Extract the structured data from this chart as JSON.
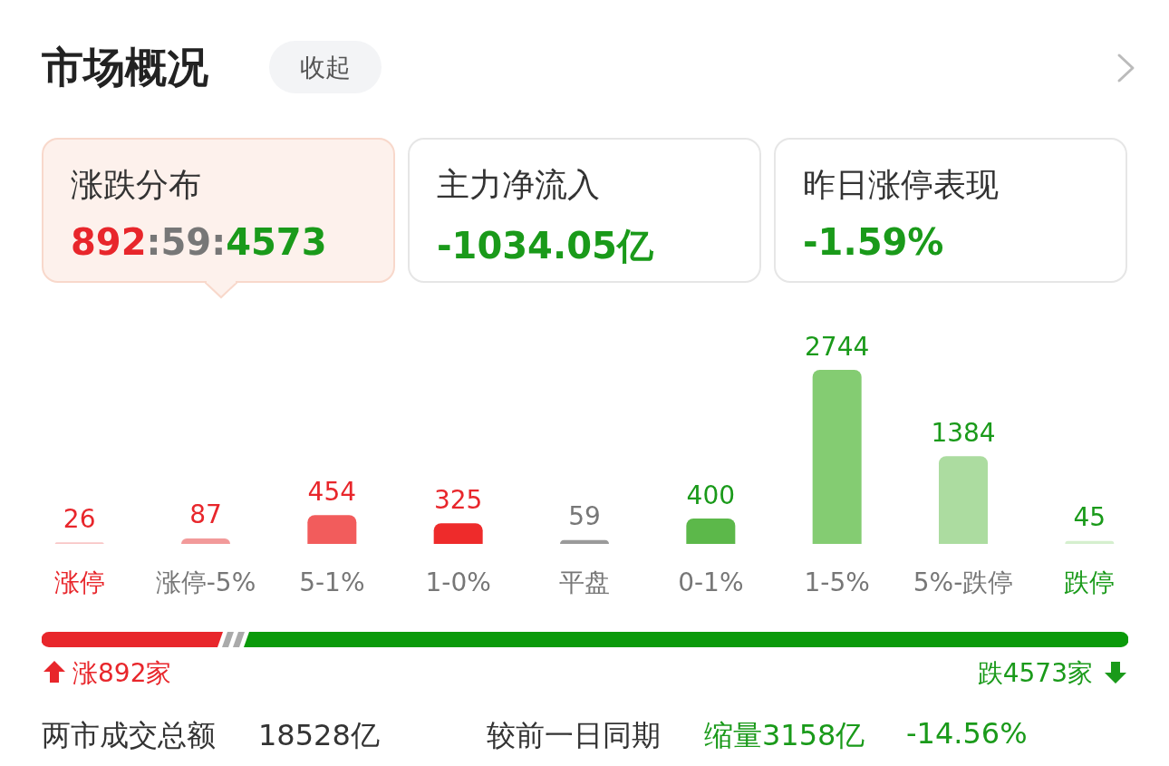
{
  "chart_data": {
    "type": "bar",
    "title": "市场概况",
    "categories": [
      "涨停",
      "涨停-5%",
      "5-1%",
      "1-0%",
      "平盘",
      "0-1%",
      "1-5%",
      "5%-跌停",
      "跌停"
    ],
    "values": [
      26,
      87,
      454,
      325,
      59,
      400,
      2744,
      1384,
      45
    ],
    "colors": [
      "#f9c6c6",
      "#f29a9a",
      "#f25c5c",
      "#ee2b2b",
      "#9a9a9a",
      "#5cb84a",
      "#84cc72",
      "#acdca0",
      "#d5efce"
    ],
    "data_labels": true,
    "annotations": [
      "收起",
      "涨跌分布",
      "892:59:4573",
      "主力净流入",
      "-1034.05亿",
      "昨日涨停表现",
      "-1.59%",
      "涨892家",
      "跌4573家",
      "两市成交总额",
      "18528亿",
      "较前一日同期",
      "缩量3158亿",
      "-14.56%"
    ]
  }
}
